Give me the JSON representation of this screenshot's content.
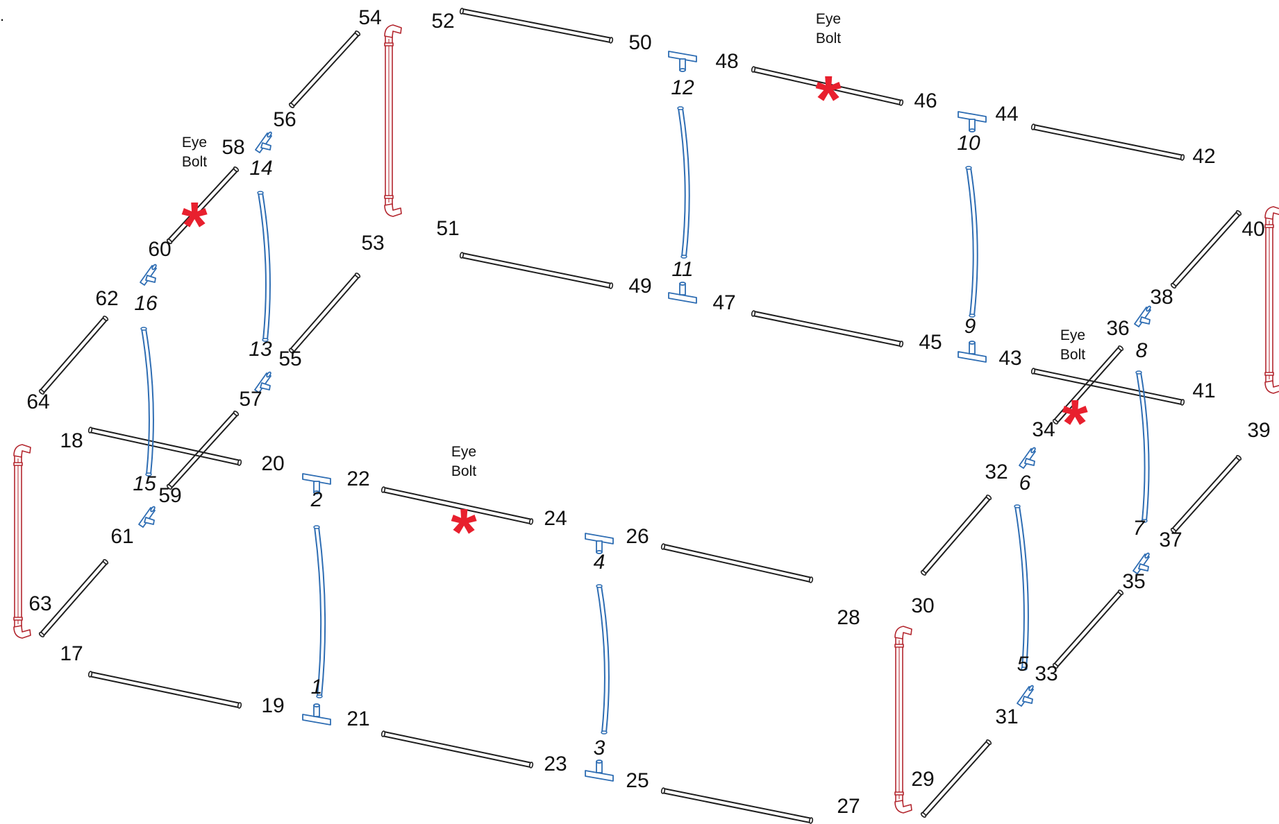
{
  "corner_mark": ".",
  "eye_bolt": {
    "line1": "Eye",
    "line2": "Bolt",
    "marker": "*"
  },
  "part_labels": [
    "1",
    "2",
    "3",
    "4",
    "5",
    "6",
    "7",
    "8",
    "9",
    "10",
    "11",
    "12",
    "13",
    "14",
    "15",
    "16",
    "17",
    "18",
    "19",
    "20",
    "21",
    "22",
    "23",
    "24",
    "25",
    "26",
    "27",
    "28",
    "29",
    "30",
    "31",
    "32",
    "33",
    "34",
    "35",
    "36",
    "37",
    "38",
    "39",
    "40",
    "41",
    "42",
    "43",
    "44",
    "45",
    "46",
    "47",
    "48",
    "49",
    "50",
    "51",
    "52",
    "53",
    "54",
    "55",
    "56",
    "57",
    "58",
    "59",
    "60",
    "61",
    "62",
    "63",
    "64"
  ],
  "colors": {
    "tube": "#1f1f1f",
    "bow": "#2e6db3",
    "fitting": "#2e6db3",
    "corner_post": "#b3262e",
    "eye_bolt_marker": "#e8202e"
  }
}
